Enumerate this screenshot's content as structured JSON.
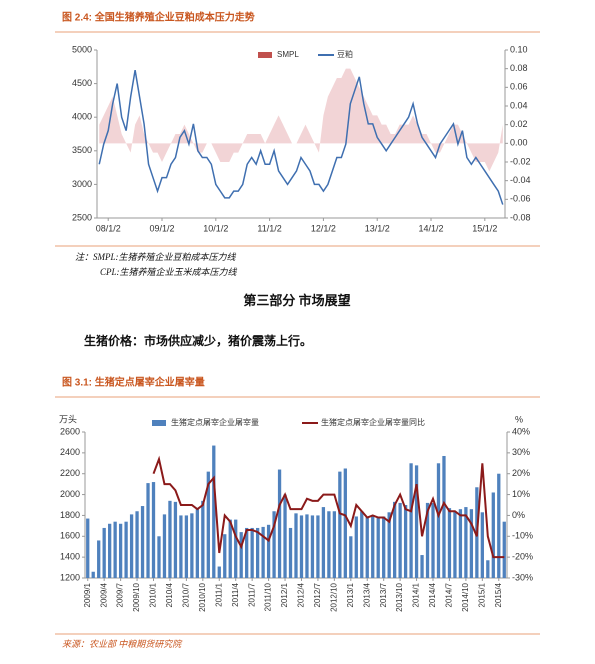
{
  "chart_data": [
    {
      "type": "line",
      "title": "图 2.4:  全国生猪养殖企业豆粕成本压力走势",
      "categories": [
        null,
        null,
        "08/1/2",
        null,
        null,
        null,
        null,
        null,
        null,
        null,
        null,
        null,
        null,
        null,
        "09/1/2",
        null,
        null,
        null,
        null,
        null,
        null,
        null,
        null,
        null,
        null,
        null,
        "10/1/2",
        null,
        null,
        null,
        null,
        null,
        null,
        null,
        null,
        null,
        null,
        null,
        "11/1/2",
        null,
        null,
        null,
        null,
        null,
        null,
        null,
        null,
        null,
        null,
        null,
        "12/1/2",
        null,
        null,
        null,
        null,
        null,
        null,
        null,
        null,
        null,
        null,
        null,
        "13/1/2",
        null,
        null,
        null,
        null,
        null,
        null,
        null,
        null,
        null,
        null,
        null,
        "14/1/2",
        null,
        null,
        null,
        null,
        null,
        null,
        null,
        null,
        null,
        null,
        null,
        "15/1/2",
        null,
        null,
        null,
        null
      ],
      "series": [
        {
          "name": "SMPL",
          "type": "area",
          "axis": "y2",
          "color": "#c0504d",
          "fill": "#f2d4d6",
          "values": [
            0.02,
            0.03,
            0.04,
            0.05,
            0.03,
            0.01,
            0.0,
            -0.01,
            0.02,
            0.03,
            0.01,
            0.0,
            -0.01,
            -0.01,
            -0.02,
            -0.01,
            0.0,
            0.01,
            0.01,
            0.02,
            0.01,
            0.0,
            -0.01,
            -0.01,
            0.0,
            0.0,
            -0.01,
            -0.02,
            -0.02,
            -0.02,
            -0.01,
            -0.01,
            0.0,
            0.01,
            0.01,
            0.01,
            0.01,
            0.0,
            0.01,
            0.02,
            0.03,
            0.02,
            0.01,
            0.0,
            0.0,
            0.01,
            0.02,
            0.01,
            0.0,
            -0.01,
            0.03,
            0.05,
            0.06,
            0.07,
            0.07,
            0.08,
            0.08,
            0.07,
            0.06,
            0.05,
            0.04,
            0.03,
            0.03,
            0.02,
            0.02,
            0.01,
            0.01,
            0.02,
            0.02,
            0.02,
            0.03,
            0.02,
            0.01,
            0.01,
            0.0,
            -0.01,
            -0.01,
            0.0,
            0.01,
            0.02,
            0.02,
            0.01,
            0.0,
            -0.01,
            -0.02,
            -0.02,
            -0.02,
            -0.03,
            -0.02,
            -0.01,
            0.02
          ]
        },
        {
          "name": "豆粕",
          "type": "line",
          "color": "#3f6fb0",
          "values": [
            3300,
            3600,
            3800,
            4200,
            4500,
            4000,
            3800,
            4300,
            4700,
            4300,
            3900,
            3300,
            3100,
            2900,
            3100,
            3100,
            3300,
            3400,
            3700,
            3800,
            3600,
            3900,
            3500,
            3400,
            3400,
            3300,
            3000,
            2900,
            2800,
            2800,
            2900,
            2900,
            3000,
            3300,
            3400,
            3300,
            3500,
            3300,
            3300,
            3500,
            3200,
            3100,
            3000,
            3100,
            3200,
            3400,
            3300,
            3200,
            3000,
            3000,
            2900,
            3000,
            3200,
            3400,
            3400,
            3600,
            4200,
            4400,
            4600,
            4200,
            3900,
            3900,
            3700,
            3600,
            3500,
            3600,
            3700,
            3800,
            3900,
            4000,
            4200,
            3900,
            3700,
            3600,
            3500,
            3400,
            3600,
            3700,
            3800,
            3900,
            3600,
            3800,
            3400,
            3300,
            3400,
            3300,
            3200,
            3100,
            3000,
            2900,
            2700
          ]
        }
      ],
      "ylim": [
        2500,
        5000
      ],
      "yticks": [
        2500,
        3000,
        3500,
        4000,
        4500,
        5000
      ],
      "y2lim": [
        -0.08,
        0.1
      ],
      "y2ticks": [
        -0.08,
        -0.06,
        -0.04,
        -0.02,
        {
          "value": 0,
          "label": "0.00"
        },
        0.02,
        0.04,
        0.06,
        0.08,
        {
          "value": 0.1,
          "label": "0.10"
        }
      ]
    },
    {
      "type": "bar",
      "title": "图 3.1:  生猪定点屠宰企业屠宰量",
      "ylabel": "万头",
      "y2label": "%",
      "categories": [
        "2009/1",
        null,
        null,
        "2009/4",
        null,
        null,
        "2009/7",
        null,
        null,
        "2009/10",
        null,
        null,
        "2010/1",
        null,
        null,
        "2010/4",
        null,
        null,
        "2010/7",
        null,
        null,
        "2010/10",
        null,
        null,
        "2011/1",
        null,
        null,
        "2011/4",
        null,
        null,
        "2011/7",
        null,
        null,
        "2011/10",
        null,
        null,
        "2012/1",
        null,
        null,
        "2012/4",
        null,
        null,
        "2012/7",
        null,
        null,
        "2012/10",
        null,
        null,
        "2013/1",
        null,
        null,
        "2013/4",
        null,
        null,
        "2013/7",
        null,
        null,
        "2013/10",
        null,
        null,
        "2014/1",
        null,
        null,
        "2014/4",
        null,
        null,
        "2014/7",
        null,
        null,
        "2014/10",
        null,
        null,
        "2015/1",
        null,
        null,
        "2015/4",
        null
      ],
      "series": [
        {
          "name": "生猪定点屠宰企业屠宰量",
          "type": "bar",
          "color": "#4f81bd",
          "values": [
            1770,
            1260,
            1560,
            1680,
            1720,
            1740,
            1720,
            1740,
            1810,
            1840,
            1890,
            2110,
            2120,
            1600,
            1810,
            1940,
            1930,
            1800,
            1800,
            1820,
            1860,
            1940,
            2220,
            2470,
            1310,
            1620,
            1760,
            1760,
            1640,
            1680,
            1680,
            1680,
            1690,
            1710,
            1840,
            2240,
            2000,
            1680,
            1820,
            1800,
            1810,
            1800,
            1800,
            1880,
            1840,
            1840,
            2220,
            2250,
            1600,
            1790,
            1840,
            1790,
            1800,
            1780,
            1790,
            1830,
            1930,
            1920,
            1900,
            2300,
            2280,
            1420,
            1920,
            1920,
            2300,
            2370,
            1870,
            1840,
            1860,
            1880,
            1860,
            2070,
            1830,
            1370,
            2020,
            2200,
            1740
          ]
        },
        {
          "name": "生猪定点屠宰企业屠宰量同比",
          "type": "line",
          "axis": "y2",
          "color": "#8b1a1a",
          "values": [
            null,
            null,
            null,
            null,
            null,
            null,
            null,
            null,
            null,
            null,
            null,
            null,
            20,
            27,
            15,
            15,
            12,
            5,
            5,
            5,
            3,
            5,
            15,
            18,
            -18,
            0,
            -3,
            -10,
            -15,
            -7,
            -7,
            -8,
            -10,
            -12,
            -5,
            5,
            10,
            3,
            3,
            3,
            8,
            7,
            7,
            10,
            10,
            10,
            1,
            0,
            -5,
            5,
            2,
            -1,
            0,
            -1,
            -1,
            -3,
            5,
            10,
            3,
            2,
            15,
            -10,
            2,
            8,
            0,
            6,
            2,
            2,
            0,
            0,
            -4,
            -10,
            25,
            -10,
            -20,
            -20,
            -20
          ]
        }
      ],
      "ylim": [
        1200,
        2600
      ],
      "yticks": [
        1200,
        1400,
        1600,
        1800,
        2000,
        2200,
        2400,
        2600
      ],
      "y2lim": [
        -30,
        40
      ],
      "y2ticks": [
        {
          "value": -30,
          "label": "-30%"
        },
        {
          "value": -20,
          "label": "-20%"
        },
        {
          "value": -10,
          "label": "-10%"
        },
        {
          "value": 0,
          "label": "0%"
        },
        {
          "value": 10,
          "label": "10%"
        },
        {
          "value": 20,
          "label": "20%"
        },
        {
          "value": 30,
          "label": "30%"
        },
        {
          "value": 40,
          "label": "40%"
        }
      ]
    }
  ],
  "notes": [
    "注：SMPL:生猪养殖企业豆粕成本压力线",
    "CPL:生猪养殖企业玉米成本压力线"
  ],
  "section_title": "第三部分  市场展望",
  "paragraph": "生猪价格：市场供应减少，猪价震荡上行。",
  "source": "来源：农业部  中粮期货研究院"
}
